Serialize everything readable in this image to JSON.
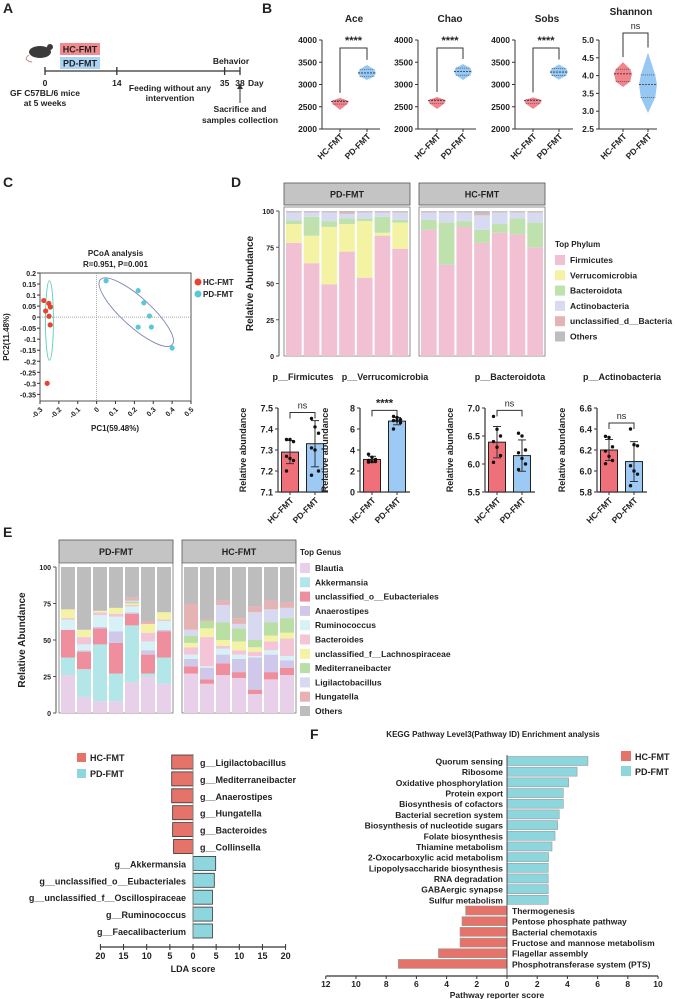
{
  "panel_labels": [
    "A",
    "B",
    "C",
    "D",
    "E",
    "F"
  ],
  "colors": {
    "hc_violin": "#f0777f",
    "pd_violin": "#8cc2f2",
    "hc_bar": "#f0707a",
    "pd_bar": "#9ccaf4",
    "hc_point": "#e8432e",
    "pd_point": "#5bc8d8",
    "hc_lda": "#e5736a",
    "pd_lda": "#8ed6de",
    "hc_tag": "#f28b8f",
    "pd_tag": "#a9d4f5",
    "strip": "#c4c4c4"
  },
  "panelA": {
    "groups": [
      "HC-FMT",
      "PD-FMT"
    ],
    "days": [
      "0",
      "14",
      "35",
      "38"
    ],
    "day_values": [
      0,
      14,
      35,
      38
    ],
    "day_unit": "Day",
    "start_label": [
      "GF C57BL/6 mice",
      "at 5 weeks"
    ],
    "middle_label": [
      "Feeding without any",
      "intervention"
    ],
    "behavior": "Behavior",
    "sacrifice": [
      "Sacrifice and",
      "samples collection"
    ]
  },
  "chart_data": [
    {
      "type": "violin",
      "title": "Ace",
      "categories": [
        "HC-FMT",
        "PD-FMT"
      ],
      "ylim": [
        2000,
        4000
      ],
      "yticks": [
        "2000",
        "2500",
        "3000",
        "3500",
        "4000"
      ],
      "significance": "****",
      "series": [
        {
          "name": "HC-FMT",
          "min": 2430,
          "q1": 2560,
          "median": 2620,
          "q3": 2640,
          "max": 2700
        },
        {
          "name": "PD-FMT",
          "min": 3100,
          "q1": 3180,
          "median": 3260,
          "q3": 3340,
          "max": 3440
        }
      ]
    },
    {
      "type": "violin",
      "title": "Chao",
      "categories": [
        "HC-FMT",
        "PD-FMT"
      ],
      "ylim": [
        2000,
        4000
      ],
      "yticks": [
        "2000",
        "2500",
        "3000",
        "3500",
        "4000"
      ],
      "significance": "****",
      "series": [
        {
          "name": "HC-FMT",
          "min": 2450,
          "q1": 2570,
          "median": 2640,
          "q3": 2660,
          "max": 2720
        },
        {
          "name": "PD-FMT",
          "min": 3100,
          "q1": 3210,
          "median": 3290,
          "q3": 3370,
          "max": 3460
        }
      ]
    },
    {
      "type": "violin",
      "title": "Sobs",
      "categories": [
        "HC-FMT",
        "PD-FMT"
      ],
      "ylim": [
        2000,
        4000
      ],
      "yticks": [
        "2000",
        "2500",
        "3000",
        "3500",
        "4000"
      ],
      "significance": "****",
      "series": [
        {
          "name": "HC-FMT",
          "min": 2450,
          "q1": 2570,
          "median": 2640,
          "q3": 2660,
          "max": 2710
        },
        {
          "name": "PD-FMT",
          "min": 3110,
          "q1": 3200,
          "median": 3280,
          "q3": 3360,
          "max": 3450
        }
      ]
    },
    {
      "type": "violin",
      "title": "Shannon",
      "categories": [
        "HC-FMT",
        "PD-FMT"
      ],
      "ylim": [
        2.5,
        5.0
      ],
      "yticks": [
        "2.5",
        "3.0",
        "3.5",
        "4.0",
        "4.5",
        "5.0"
      ],
      "significance": "ns",
      "series": [
        {
          "name": "HC-FMT",
          "min": 3.68,
          "q1": 3.83,
          "median": 4.05,
          "q3": 4.18,
          "max": 4.38
        },
        {
          "name": "PD-FMT",
          "min": 2.95,
          "q1": 3.38,
          "median": 3.75,
          "q3": 4.02,
          "max": 4.65
        }
      ]
    },
    {
      "type": "scatter",
      "title": "PCoA analysis",
      "subtitle": "R=0.951, P=0.001",
      "xlabel": "PC1(59.48%)",
      "ylabel": "PC2(11.48%)",
      "xlim": [
        -0.3,
        0.5
      ],
      "ylim": [
        -0.38,
        0.2
      ],
      "xticks": [
        "-0.3",
        "-0.2",
        "-0.1",
        "0",
        "0.1",
        "0.2",
        "0.3",
        "0.4",
        "0.5"
      ],
      "yticks": [
        "-0.35",
        "-0.3",
        "-0.25",
        "-0.2",
        "-0.15",
        "-0.1",
        "-0.05",
        "0",
        "0.05",
        "0.1",
        "0.15",
        "0.2"
      ],
      "legend": [
        "HC-FMT",
        "PD-FMT"
      ],
      "series": [
        {
          "name": "HC-FMT",
          "points": [
            [
              -0.28,
              0.075
            ],
            [
              -0.27,
              0.028
            ],
            [
              -0.253,
              0.062
            ],
            [
              -0.245,
              0.046
            ],
            [
              -0.252,
              0.004
            ],
            [
              -0.246,
              -0.035
            ],
            [
              -0.262,
              -0.3
            ]
          ]
        },
        {
          "name": "PD-FMT",
          "points": [
            [
              0.05,
              0.165
            ],
            [
              0.22,
              0.12
            ],
            [
              0.25,
              0.065
            ],
            [
              0.28,
              0.005
            ],
            [
              0.22,
              -0.045
            ],
            [
              0.29,
              -0.045
            ],
            [
              0.4,
              -0.14
            ]
          ]
        }
      ],
      "ellipses": [
        {
          "group": "HC-FMT",
          "major": [
            [
              -0.25,
              0.165
            ],
            [
              -0.25,
              -0.195
            ]
          ],
          "minor_ratio": 0.1
        },
        {
          "group": "PD-FMT",
          "major": [
            [
              0.02,
              0.17
            ],
            [
              0.4,
              -0.125
            ]
          ],
          "minor_ratio": 0.3
        }
      ]
    },
    {
      "type": "bar",
      "stacked": true,
      "ylabel": "Relative Abundance",
      "ylim": [
        0,
        100
      ],
      "yticks": [
        "0",
        "25",
        "50",
        "75",
        "100"
      ],
      "legend_title": "Top Phylum",
      "taxa": [
        "Firmicutes",
        "Verrucomicrobia",
        "Bacteroidota",
        "Actinobacteria",
        "unclassified_d__Bacteria",
        "Others"
      ],
      "taxa_colors": [
        "#f2c0d3",
        "#f4f3a4",
        "#bfe1ae",
        "#d6dbf1",
        "#e5b3b3",
        "#bdbdbd"
      ],
      "groups": [
        {
          "name": "PD-FMT",
          "samples": [
            [
              78,
              13,
              2.5,
              5.5,
              0.5,
              0.5
            ],
            [
              64,
              19,
              13,
              3,
              0.5,
              0.5
            ],
            [
              49.5,
              39.5,
              4,
              6,
              0.5,
              0.5
            ],
            [
              72,
              19,
              4,
              3,
              1,
              1
            ],
            [
              54,
              39,
              2,
              4,
              0.5,
              0.5
            ],
            [
              83,
              2,
              11,
              3,
              0.5,
              0.5
            ],
            [
              74,
              18,
              2,
              5,
              0.5,
              0.5
            ]
          ]
        },
        {
          "name": "HC-FMT",
          "samples": [
            [
              87,
              0,
              7,
              5,
              0.5,
              0.5
            ],
            [
              63,
              0,
              29,
              7,
              0.5,
              0.5
            ],
            [
              89,
              0,
              4,
              6,
              0.5,
              0.5
            ],
            [
              78,
              0,
              9,
              10,
              1,
              2
            ],
            [
              85,
              0,
              6,
              8,
              0.5,
              0.5
            ],
            [
              84,
              0,
              11,
              4,
              0.5,
              0.5
            ],
            [
              75,
              0,
              17,
              7,
              0.5,
              0.5
            ]
          ]
        }
      ]
    },
    {
      "type": "bar",
      "title": "p__Firmicutes",
      "ylabel": "Relative abundance",
      "categories": [
        "HC-FMT",
        "PD-FMT"
      ],
      "values": [
        7.29,
        7.33
      ],
      "sd": [
        0.055,
        0.11
      ],
      "ylim": [
        7.1,
        7.5
      ],
      "yticks": [
        "7.1",
        "7.2",
        "7.3",
        "7.4",
        "7.5"
      ],
      "significance": "ns",
      "points": [
        [
          7.35,
          7.35,
          7.34,
          7.27,
          7.26,
          7.25,
          7.2
        ],
        [
          7.45,
          7.41,
          7.38,
          7.31,
          7.3,
          7.2,
          7.18
        ]
      ]
    },
    {
      "type": "bar",
      "title": "p__Verrucomicrobia",
      "ylabel": "Relative abundance",
      "categories": [
        "HC-FMT",
        "PD-FMT"
      ],
      "values": [
        3.1,
        6.75
      ],
      "sd": [
        0.3,
        0.35
      ],
      "ylim": [
        0,
        8
      ],
      "yticks": [
        "0",
        "2",
        "4",
        "6",
        "8"
      ],
      "significance": "****",
      "points": [
        [
          3.6,
          3.3,
          3.1,
          3.0,
          2.9,
          2.9,
          2.85
        ],
        [
          7.2,
          7.1,
          6.9,
          6.8,
          6.8,
          6.6,
          6.0
        ]
      ]
    },
    {
      "type": "bar",
      "title": "p__Bacteroidota",
      "ylabel": "Relative abundance",
      "categories": [
        "HC-FMT",
        "PD-FMT"
      ],
      "values": [
        6.39,
        6.15
      ],
      "sd": [
        0.28,
        0.28
      ],
      "ylim": [
        5.5,
        7.0
      ],
      "yticks": [
        "5.5",
        "6.0",
        "6.5",
        "7.0"
      ],
      "significance": "ns",
      "points": [
        [
          6.85,
          6.62,
          6.5,
          6.4,
          6.3,
          6.15,
          6.03
        ],
        [
          6.55,
          6.5,
          6.25,
          6.2,
          6.1,
          6.0,
          5.9
        ]
      ]
    },
    {
      "type": "bar",
      "title": "p__Actinobacteria",
      "ylabel": "Relative abundance",
      "categories": [
        "HC-FMT",
        "PD-FMT"
      ],
      "values": [
        6.2,
        6.09
      ],
      "sd": [
        0.1,
        0.19
      ],
      "ylim": [
        5.8,
        6.6
      ],
      "yticks": [
        "5.8",
        "6.0",
        "6.2",
        "6.4",
        "6.6"
      ],
      "significance": "ns",
      "points": [
        [
          6.33,
          6.32,
          6.23,
          6.19,
          6.14,
          6.1,
          6.07
        ],
        [
          6.4,
          6.25,
          6.24,
          6.05,
          6.0,
          5.97,
          5.86
        ]
      ]
    },
    {
      "type": "bar",
      "stacked": true,
      "ylabel": "Relative Abundance",
      "ylim": [
        0,
        100
      ],
      "yticks": [
        "0",
        "25",
        "50",
        "75",
        "100"
      ],
      "legend_title": "Top Genus",
      "taxa": [
        "Blautia",
        "Akkermansia",
        "unclassified_o__Eubacteriales",
        "Anaerostipes",
        "Ruminococcus",
        "Bacteroides",
        "unclassified_f__Lachnospiraceae",
        "Mediterraneibacter",
        "Ligilactobacillus",
        "Hungatella",
        "Others"
      ],
      "taxa_colors": [
        "#e8d0ea",
        "#b3e6e9",
        "#ef8f9d",
        "#d0c8ea",
        "#d6f2f7",
        "#f3c5d6",
        "#f4f2a4",
        "#b9dfa5",
        "#d6d9f0",
        "#e5b3b3",
        "#bdbdbd"
      ],
      "groups": [
        {
          "name": "PD-FMT",
          "samples": [
            [
              26,
              12,
              19,
              0,
              7,
              1,
              6,
              0,
              0,
              0,
              29
            ],
            [
              11,
              19,
              12,
              1,
              4,
              5,
              5,
              0,
              0,
              0,
              43
            ],
            [
              8,
              39,
              11,
              1,
              8,
              2,
              1,
              0,
              0,
              0,
              30
            ],
            [
              8,
              19,
              21,
              8,
              10,
              2,
              4,
              0,
              0,
              0,
              28
            ],
            [
              21,
              39,
              8,
              1,
              4,
              1,
              1,
              1,
              1,
              2,
              21
            ],
            [
              25,
              2,
              13,
              3,
              6,
              6,
              6,
              0,
              0,
              2,
              37
            ],
            [
              20,
              18,
              18,
              1,
              6,
              1,
              5,
              0,
              0,
              0,
              31
            ]
          ]
        },
        {
          "name": "HC-FMT",
          "samples": [
            [
              27,
              0,
              5,
              5,
              3,
              5,
              3,
              5,
              4,
              18,
              25
            ],
            [
              20,
              0,
              3,
              8,
              1,
              20,
              6,
              5,
              0,
              1,
              36
            ],
            [
              26,
              0,
              8,
              6,
              4,
              2,
              4,
              12,
              12,
              3,
              23
            ],
            [
              24,
              0,
              4,
              9,
              3,
              3,
              6,
              9,
              3,
              4,
              35
            ],
            [
              13,
              0,
              3,
              22,
              1,
              3,
              3,
              5,
              19,
              4,
              27
            ],
            [
              23,
              0,
              5,
              12,
              3,
              6,
              4,
              9,
              9,
              6,
              23
            ],
            [
              26,
              0,
              5,
              5,
              3,
              12,
              4,
              10,
              7,
              4,
              24
            ]
          ]
        }
      ]
    },
    {
      "type": "bar",
      "orientation": "horizontal",
      "xlabel": "LDA score",
      "xlim": [
        -20,
        20
      ],
      "xtick_values": [
        -20,
        -15,
        -10,
        -5,
        0,
        5,
        10,
        15,
        20
      ],
      "xtick_labels": [
        "20",
        "15",
        "10",
        "5",
        "0",
        "5",
        "10",
        "15",
        "20"
      ],
      "legend": [
        "HC-FMT",
        "PD-FMT"
      ],
      "categories": [
        "g__Ligilactobacillus",
        "g__Mediterraneibacter",
        "g__Anaerostipes",
        "g__Hungatella",
        "g__Bacteroides",
        "g__Collinsella",
        "g__Akkermansia",
        "g__unclassified_o__Eubacteriales",
        "g__unclassified_f__Oscillospiraceae",
        "g__Ruminococcus",
        "g__Faecalibacterium"
      ],
      "groups": [
        "HC-FMT",
        "HC-FMT",
        "HC-FMT",
        "HC-FMT",
        "HC-FMT",
        "HC-FMT",
        "PD-FMT",
        "PD-FMT",
        "PD-FMT",
        "PD-FMT",
        "PD-FMT"
      ],
      "values": [
        4.6,
        4.6,
        4.6,
        4.4,
        4.4,
        4.2,
        4.9,
        4.6,
        4.2,
        4.2,
        4.2
      ]
    },
    {
      "type": "bar",
      "orientation": "horizontal",
      "title": "KEGG Pathway Level3(Pathway ID) Enrichment analysis",
      "xlabel": "Pathway reporter score",
      "xlim": [
        -12,
        10
      ],
      "xtick_values": [
        -12,
        -10,
        -8,
        -6,
        -4,
        -2,
        0,
        2,
        4,
        6,
        8,
        10
      ],
      "xtick_labels": [
        "12",
        "10",
        "8",
        "6",
        "4",
        "2",
        "0",
        "2",
        "4",
        "6",
        "8",
        "10"
      ],
      "legend": [
        "HC-FMT",
        "PD-FMT"
      ],
      "categories": [
        "Quorum sensing",
        "Ribosome",
        "Oxidative phosphorylation",
        "Protein export",
        "Biosynthesis of cofactors",
        "Bacterial secretion system",
        "Biosynthesis of nucleotide sugars",
        "Folate biosynthesis",
        "Thiamine metabolism",
        "2-Oxocarboxylic acid metabolism",
        "Lipopolysaccharide biosynthesis",
        "RNA degradation",
        "GABAergic synapse",
        "Sulfur metabolism",
        "Thermogenesis",
        "Pentose phosphate pathway",
        "Bacterial chemotaxis",
        "Fructose and mannose metabolism",
        "Flagellar assembly",
        "Phosphotransferase system (PTS)"
      ],
      "values": [
        5.36,
        4.64,
        4.08,
        3.73,
        3.73,
        3.46,
        3.35,
        3.18,
        2.98,
        2.75,
        2.73,
        2.73,
        2.73,
        2.73,
        -2.74,
        -2.98,
        -3.11,
        -3.11,
        -4.54,
        -7.2
      ]
    }
  ]
}
